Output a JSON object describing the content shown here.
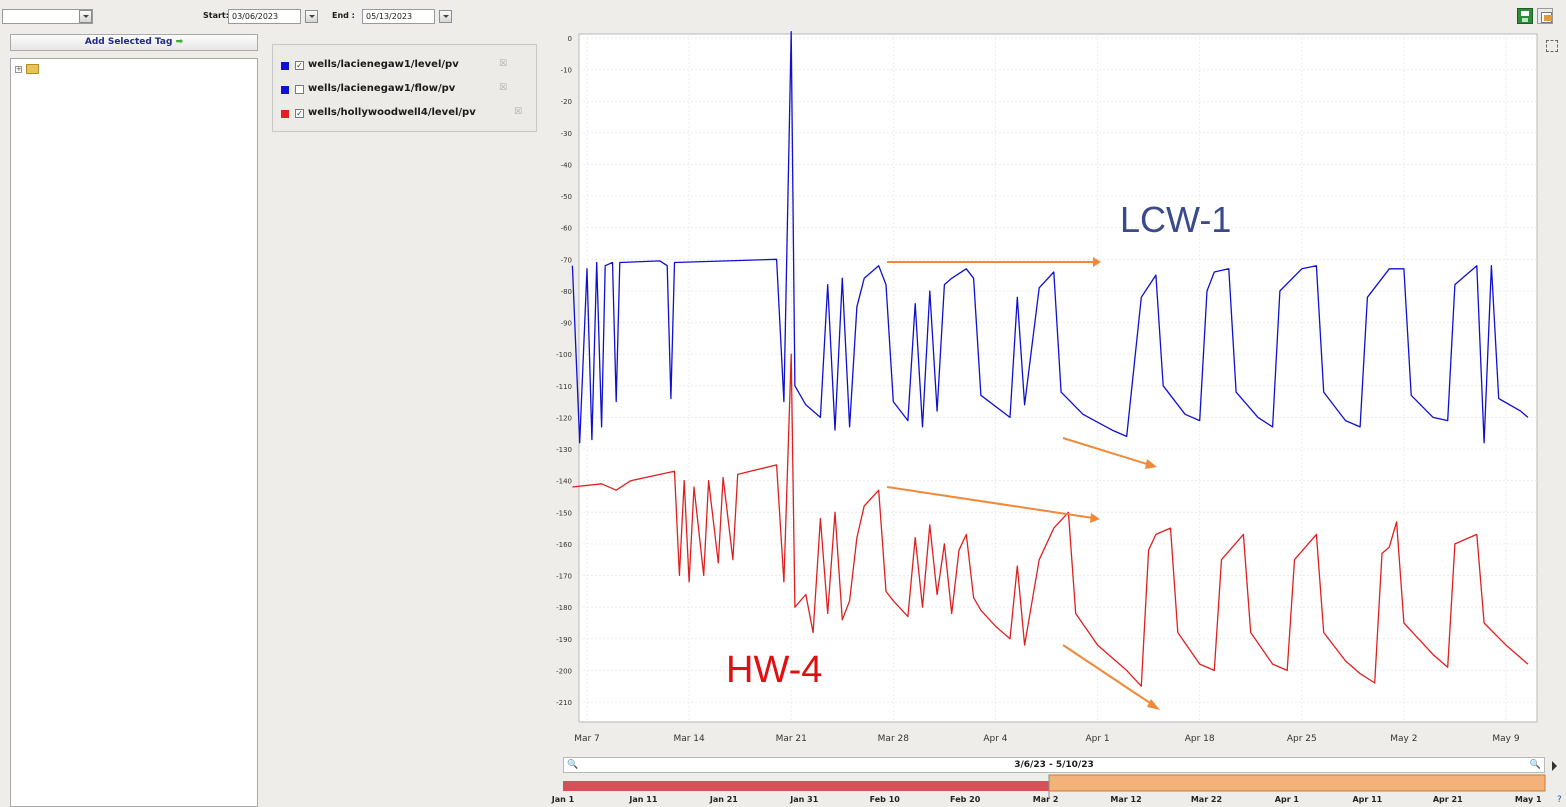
{
  "toolbar": {
    "start_label": "Start:",
    "start_value": "03/06/2023",
    "end_label": "End :",
    "end_value": "05/13/2023"
  },
  "sidebar": {
    "add_button_label": "Add Selected Tag"
  },
  "legend": {
    "items": [
      {
        "label": "wells/lacienegaw1/level/pv",
        "color": "#1212c8",
        "checked": true
      },
      {
        "label": "wells/lacienegaw1/flow/pv",
        "color": "#1212c8",
        "checked": false
      },
      {
        "label": "wells/hollywoodwell4/level/pv",
        "color": "#dd2020",
        "checked": true
      }
    ]
  },
  "annotations": {
    "lcw": "LCW-1",
    "hw": "HW-4",
    "lcw_color": "#3a4a8a",
    "hw_color": "#e01010",
    "arrow_color": "#f0893a"
  },
  "range_label": "3/6/23 - 5/10/23",
  "timeline_ticks": [
    "Jan 1",
    "Jan 11",
    "Jan 21",
    "Jan 31",
    "Feb 10",
    "Feb 20",
    "Mar 2",
    "Mar 12",
    "Mar 22",
    "Apr 1",
    "Apr 11",
    "Apr 21",
    "May 1"
  ],
  "chart_data": {
    "type": "line",
    "x_ticks": [
      "Mar 7",
      "Mar 14",
      "Mar 21",
      "Mar 28",
      "Apr 4",
      "Apr 1",
      "Apr 18",
      "Apr 25",
      "May 2",
      "May 9"
    ],
    "y_ticks": [
      0,
      -10,
      -20,
      -30,
      -40,
      -50,
      -60,
      -70,
      -80,
      -90,
      -100,
      -110,
      -120,
      -130,
      -140,
      -150,
      -160,
      -170,
      -180,
      -190,
      -200,
      -210
    ],
    "ylim": [
      -215,
      2
    ],
    "series": [
      {
        "color": "#1010d0",
        "points": [
          [
            "2023-03-06",
            -72
          ],
          [
            "2023-03-06T12",
            -128
          ],
          [
            "2023-03-07",
            -73
          ],
          [
            "2023-03-07T08",
            -127
          ],
          [
            "2023-03-07T16",
            -71
          ],
          [
            "2023-03-08",
            -123
          ],
          [
            "2023-03-08T06",
            -72
          ],
          [
            "2023-03-08T18",
            -71
          ],
          [
            "2023-03-09",
            -115
          ],
          [
            "2023-03-09T06",
            -71
          ],
          [
            "2023-03-12",
            -70.5
          ],
          [
            "2023-03-12T12",
            -72
          ],
          [
            "2023-03-12T18",
            -114
          ],
          [
            "2023-03-13",
            -71
          ],
          [
            "2023-03-20",
            -70
          ],
          [
            "2023-03-20T12",
            -115
          ],
          [
            "2023-03-21",
            2
          ],
          [
            "2023-03-21T06",
            -110
          ],
          [
            "2023-03-22",
            -116
          ],
          [
            "2023-03-23",
            -120
          ],
          [
            "2023-03-23T12",
            -78
          ],
          [
            "2023-03-24",
            -124
          ],
          [
            "2023-03-24T12",
            -76
          ],
          [
            "2023-03-25",
            -123
          ],
          [
            "2023-03-25T12",
            -85
          ],
          [
            "2023-03-26",
            -76
          ],
          [
            "2023-03-27",
            -72
          ],
          [
            "2023-03-27T12",
            -78
          ],
          [
            "2023-03-28",
            -115
          ],
          [
            "2023-03-29",
            -121
          ],
          [
            "2023-03-29T12",
            -84
          ],
          [
            "2023-03-30",
            -123
          ],
          [
            "2023-03-30T12",
            -80
          ],
          [
            "2023-03-31",
            -118
          ],
          [
            "2023-03-31T12",
            -78
          ],
          [
            "2023-04-01",
            -76
          ],
          [
            "2023-04-02",
            -73
          ],
          [
            "2023-04-02T12",
            -76
          ],
          [
            "2023-04-03",
            -113
          ],
          [
            "2023-04-05",
            -120
          ],
          [
            "2023-04-05T12",
            -82
          ],
          [
            "2023-04-06",
            -116
          ],
          [
            "2023-04-07",
            -79
          ],
          [
            "2023-04-08",
            -74
          ],
          [
            "2023-04-08T12",
            -112
          ],
          [
            "2023-04-10",
            -119
          ],
          [
            "2023-04-12",
            -124
          ],
          [
            "2023-04-13",
            -126
          ],
          [
            "2023-04-14",
            -82
          ],
          [
            "2023-04-15",
            -75
          ],
          [
            "2023-04-15T12",
            -110
          ],
          [
            "2023-04-17",
            -119
          ],
          [
            "2023-04-18",
            -121
          ],
          [
            "2023-04-18T12",
            -80
          ],
          [
            "2023-04-19",
            -74
          ],
          [
            "2023-04-20",
            -73
          ],
          [
            "2023-04-20T12",
            -112
          ],
          [
            "2023-04-22",
            -120
          ],
          [
            "2023-04-23",
            -123
          ],
          [
            "2023-04-23T12",
            -80
          ],
          [
            "2023-04-25",
            -73
          ],
          [
            "2023-04-26",
            -72
          ],
          [
            "2023-04-26T12",
            -112
          ],
          [
            "2023-04-28",
            -121
          ],
          [
            "2023-04-29",
            -123
          ],
          [
            "2023-04-29T12",
            -82
          ],
          [
            "2023-05-01",
            -73
          ],
          [
            "2023-05-02",
            -73
          ],
          [
            "2023-05-02T12",
            -113
          ],
          [
            "2023-05-04",
            -120
          ],
          [
            "2023-05-05",
            -121
          ],
          [
            "2023-05-05T12",
            -78
          ],
          [
            "2023-05-07",
            -72
          ],
          [
            "2023-05-07T12",
            -128
          ],
          [
            "2023-05-08",
            -72
          ],
          [
            "2023-05-08T12",
            -114
          ],
          [
            "2023-05-10",
            -118
          ],
          [
            "2023-05-10T12",
            -120
          ]
        ]
      },
      {
        "color": "#e02020",
        "points": [
          [
            "2023-03-06",
            -142
          ],
          [
            "2023-03-08",
            -141
          ],
          [
            "2023-03-09",
            -143
          ],
          [
            "2023-03-10",
            -140
          ],
          [
            "2023-03-12",
            -138
          ],
          [
            "2023-03-13",
            -137
          ],
          [
            "2023-03-13T08",
            -170
          ],
          [
            "2023-03-13T16",
            -140
          ],
          [
            "2023-03-14",
            -172
          ],
          [
            "2023-03-14T08",
            -142
          ],
          [
            "2023-03-15",
            -170
          ],
          [
            "2023-03-15T08",
            -140
          ],
          [
            "2023-03-16",
            -166
          ],
          [
            "2023-03-16T08",
            -139
          ],
          [
            "2023-03-17",
            -165
          ],
          [
            "2023-03-17T08",
            -138
          ],
          [
            "2023-03-20",
            -135
          ],
          [
            "2023-03-20T12",
            -172
          ],
          [
            "2023-03-21",
            -100
          ],
          [
            "2023-03-21T06",
            -180
          ],
          [
            "2023-03-22",
            -176
          ],
          [
            "2023-03-22T12",
            -188
          ],
          [
            "2023-03-23",
            -152
          ],
          [
            "2023-03-23T12",
            -182
          ],
          [
            "2023-03-24",
            -150
          ],
          [
            "2023-03-24T12",
            -184
          ],
          [
            "2023-03-25",
            -178
          ],
          [
            "2023-03-25T12",
            -158
          ],
          [
            "2023-03-26",
            -148
          ],
          [
            "2023-03-27",
            -143
          ],
          [
            "2023-03-27T12",
            -175
          ],
          [
            "2023-03-28",
            -178
          ],
          [
            "2023-03-29",
            -183
          ],
          [
            "2023-03-29T12",
            -158
          ],
          [
            "2023-03-30",
            -180
          ],
          [
            "2023-03-30T12",
            -154
          ],
          [
            "2023-03-31",
            -176
          ],
          [
            "2023-03-31T12",
            -160
          ],
          [
            "2023-04-01",
            -182
          ],
          [
            "2023-04-01T12",
            -162
          ],
          [
            "2023-04-02",
            -157
          ],
          [
            "2023-04-02T12",
            -177
          ],
          [
            "2023-04-03",
            -181
          ],
          [
            "2023-04-04",
            -186
          ],
          [
            "2023-04-05",
            -190
          ],
          [
            "2023-04-05T12",
            -167
          ],
          [
            "2023-04-06",
            -192
          ],
          [
            "2023-04-07",
            -165
          ],
          [
            "2023-04-08",
            -155
          ],
          [
            "2023-04-09",
            -150
          ],
          [
            "2023-04-09T12",
            -182
          ],
          [
            "2023-04-11",
            -192
          ],
          [
            "2023-04-13",
            -200
          ],
          [
            "2023-04-14",
            -205
          ],
          [
            "2023-04-14T12",
            -162
          ],
          [
            "2023-04-15",
            -157
          ],
          [
            "2023-04-16",
            -155
          ],
          [
            "2023-04-16T12",
            -188
          ],
          [
            "2023-04-18",
            -198
          ],
          [
            "2023-04-19",
            -200
          ],
          [
            "2023-04-19T12",
            -165
          ],
          [
            "2023-04-21",
            -157
          ],
          [
            "2023-04-21T12",
            -188
          ],
          [
            "2023-04-23",
            -198
          ],
          [
            "2023-04-24",
            -200
          ],
          [
            "2023-04-24T12",
            -165
          ],
          [
            "2023-04-26",
            -157
          ],
          [
            "2023-04-26T12",
            -188
          ],
          [
            "2023-04-28",
            -197
          ],
          [
            "2023-04-29",
            -201
          ],
          [
            "2023-04-30",
            -204
          ],
          [
            "2023-04-30T12",
            -163
          ],
          [
            "2023-05-01",
            -161
          ],
          [
            "2023-05-01T12",
            -153
          ],
          [
            "2023-05-02",
            -185
          ],
          [
            "2023-05-04",
            -195
          ],
          [
            "2023-05-05",
            -199
          ],
          [
            "2023-05-05T12",
            -160
          ],
          [
            "2023-05-07",
            -157
          ],
          [
            "2023-05-07T12",
            -185
          ],
          [
            "2023-05-09",
            -192
          ],
          [
            "2023-05-10",
            -196
          ],
          [
            "2023-05-10T12",
            -198
          ]
        ]
      }
    ]
  }
}
